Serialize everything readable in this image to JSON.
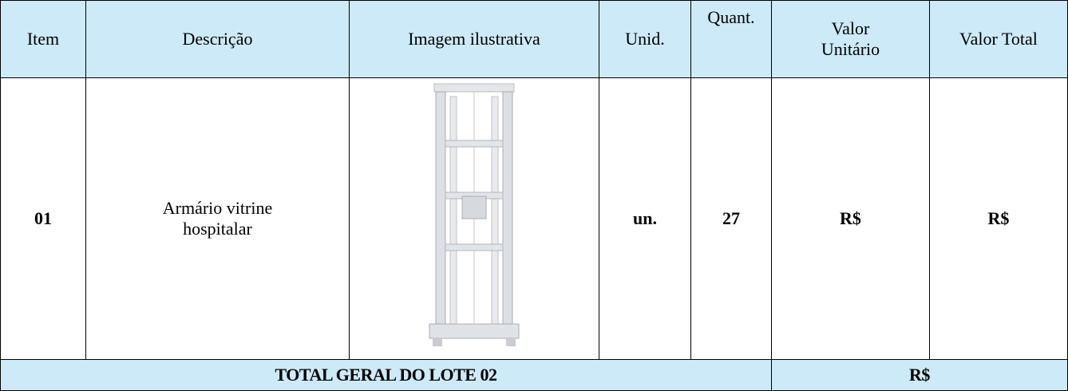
{
  "table": {
    "headers": [
      "Item",
      "Descrição",
      "Imagem ilustrativa",
      "Unid.",
      "Quant.",
      "Valor Unitário",
      "Valor Total"
    ],
    "rows": [
      {
        "item": "01",
        "descricao": "Armário vitrine hospitalar",
        "unid": "un.",
        "quant": 27,
        "valor_unitario": "R$",
        "valor_total": "R$"
      }
    ],
    "total": {
      "label": "TOTAL GERAL DO LOTE 02",
      "value": "R$"
    }
  }
}
